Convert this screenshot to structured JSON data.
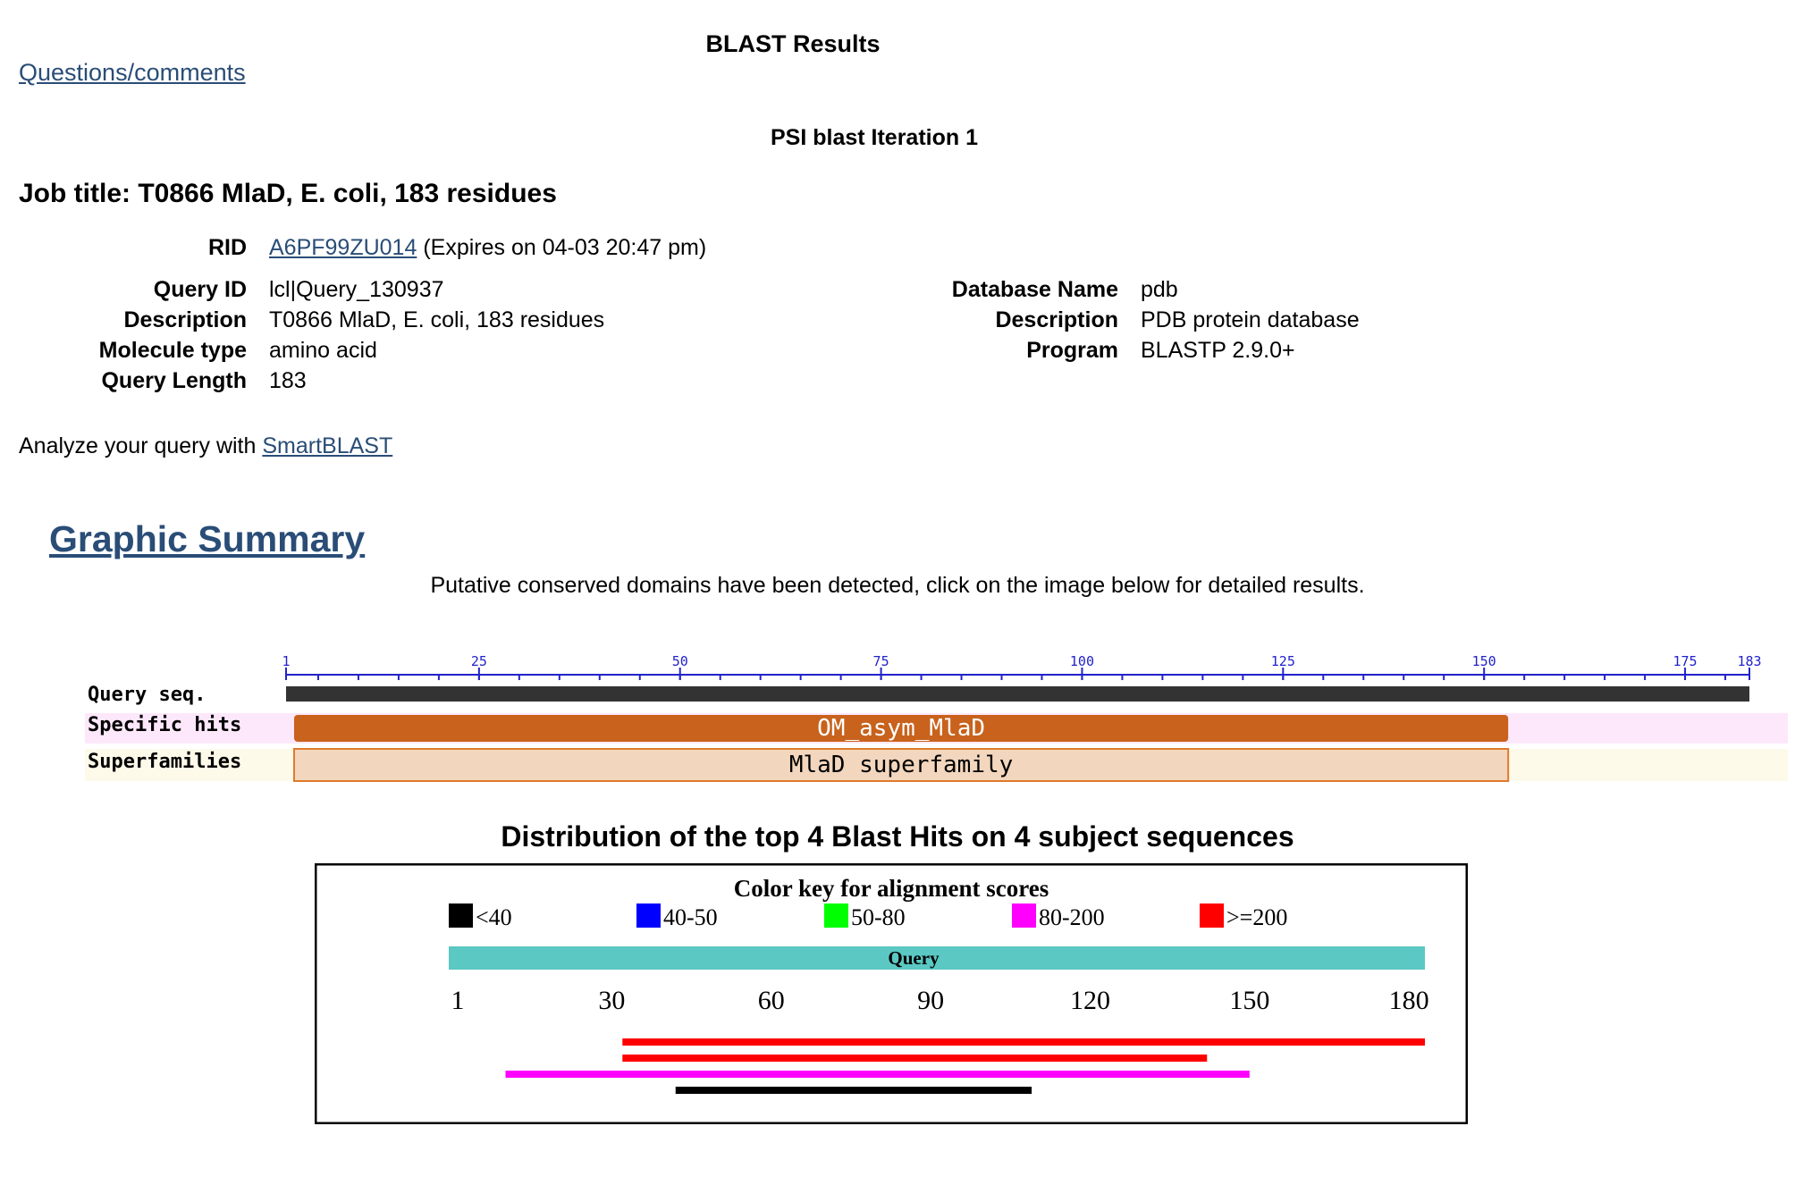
{
  "header": {
    "title": "BLAST Results",
    "questions_link": "Questions/comments",
    "iteration_title": "PSI blast Iteration 1",
    "job_title_label": "Job title:",
    "job_title": "T0866 MlaD, E. coli, 183 residues"
  },
  "rid": {
    "label": "RID",
    "value": "A6PF99ZU014",
    "expires": "(Expires on 04-03 20:47 pm)"
  },
  "query_info": [
    {
      "label": "Query ID",
      "value": "lcl|Query_130937"
    },
    {
      "label": "Description",
      "value": "T0866 MlaD, E. coli, 183 residues"
    },
    {
      "label": "Molecule type",
      "value": "amino acid"
    },
    {
      "label": "Query Length",
      "value": "183"
    }
  ],
  "database_info": [
    {
      "label": "Database Name",
      "value": "pdb"
    },
    {
      "label": "Description",
      "value": "PDB protein database"
    },
    {
      "label": "Program",
      "value": "BLASTP 2.9.0+"
    }
  ],
  "analyze": {
    "prefix": "Analyze your query with",
    "link": "SmartBLAST"
  },
  "graphic_summary": {
    "heading": "Graphic Summary",
    "note": "Putative conserved domains have been detected, click on the image below for detailed results."
  },
  "cdd": {
    "query_length": 183,
    "tick_labels": [
      1,
      25,
      50,
      75,
      100,
      125,
      150,
      175,
      183
    ],
    "row_labels": {
      "query": "Query seq.",
      "specific": "Specific hits",
      "superfamily": "Superfamilies"
    },
    "specific_hit": {
      "name": "OM_asym_MlaD",
      "start": 2,
      "end": 153,
      "color": "#c8621c"
    },
    "superfamily_hit": {
      "name": "MlaD superfamily",
      "start": 2,
      "end": 153,
      "color": "#f2d6bd",
      "border": "#e07a2b"
    },
    "colors": {
      "axis": "#2222cc",
      "query_bar": "#333333",
      "specific_bg": "#fde8fb",
      "super_bg": "#fdfaea"
    }
  },
  "distribution": {
    "title": "Distribution of the top 4 Blast Hits on 4 subject sequences",
    "color_key_title": "Color key for alignment scores",
    "color_key": [
      {
        "label": "<40",
        "color": "#000000"
      },
      {
        "label": "40-50",
        "color": "#0000ff"
      },
      {
        "label": "50-80",
        "color": "#00ff00"
      },
      {
        "label": "80-200",
        "color": "#ff00ff"
      },
      {
        "label": ">=200",
        "color": "#ff0000"
      }
    ],
    "query_label": "Query",
    "query_bar_color": "#5bc8c4",
    "query_length": 183,
    "ticks": [
      1,
      30,
      60,
      90,
      120,
      150,
      180
    ],
    "hits": [
      {
        "start": 32,
        "end": 183,
        "color": "#ff0000"
      },
      {
        "start": 32,
        "end": 142,
        "color": "#ff0000"
      },
      {
        "start": 10,
        "end": 150,
        "color": "#ff00ff"
      },
      {
        "start": 42,
        "end": 109,
        "color": "#000000"
      }
    ]
  }
}
